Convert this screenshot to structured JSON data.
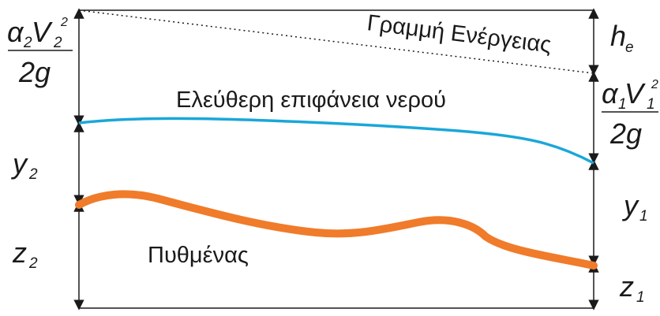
{
  "labels": {
    "energy_line": "Γραμμή Ενέργειας",
    "free_surface": "Ελεύθερη επιφάνεια νερού",
    "bed": "Πυθμένας"
  },
  "left_head": {
    "alpha": "α",
    "alpha_sub": "2",
    "V": "V",
    "V_sub": "2",
    "power": "2",
    "denominator": "2g"
  },
  "right_head": {
    "alpha": "α",
    "alpha_sub": "1",
    "V": "V",
    "V_sub": "1",
    "power": "2",
    "denominator": "2g"
  },
  "depths": {
    "y_left": "y",
    "y_left_sub": "2",
    "y_right": "y",
    "y_right_sub": "1"
  },
  "elevations": {
    "z_left": "z",
    "z_left_sub": "2",
    "z_right": "z",
    "z_right_sub": "1"
  },
  "head_loss": {
    "h": "h",
    "h_sub": "e"
  },
  "colors": {
    "free_surface": "#1aa7d9",
    "bed": "#f07b2a",
    "lines": "#1a1a1a"
  }
}
